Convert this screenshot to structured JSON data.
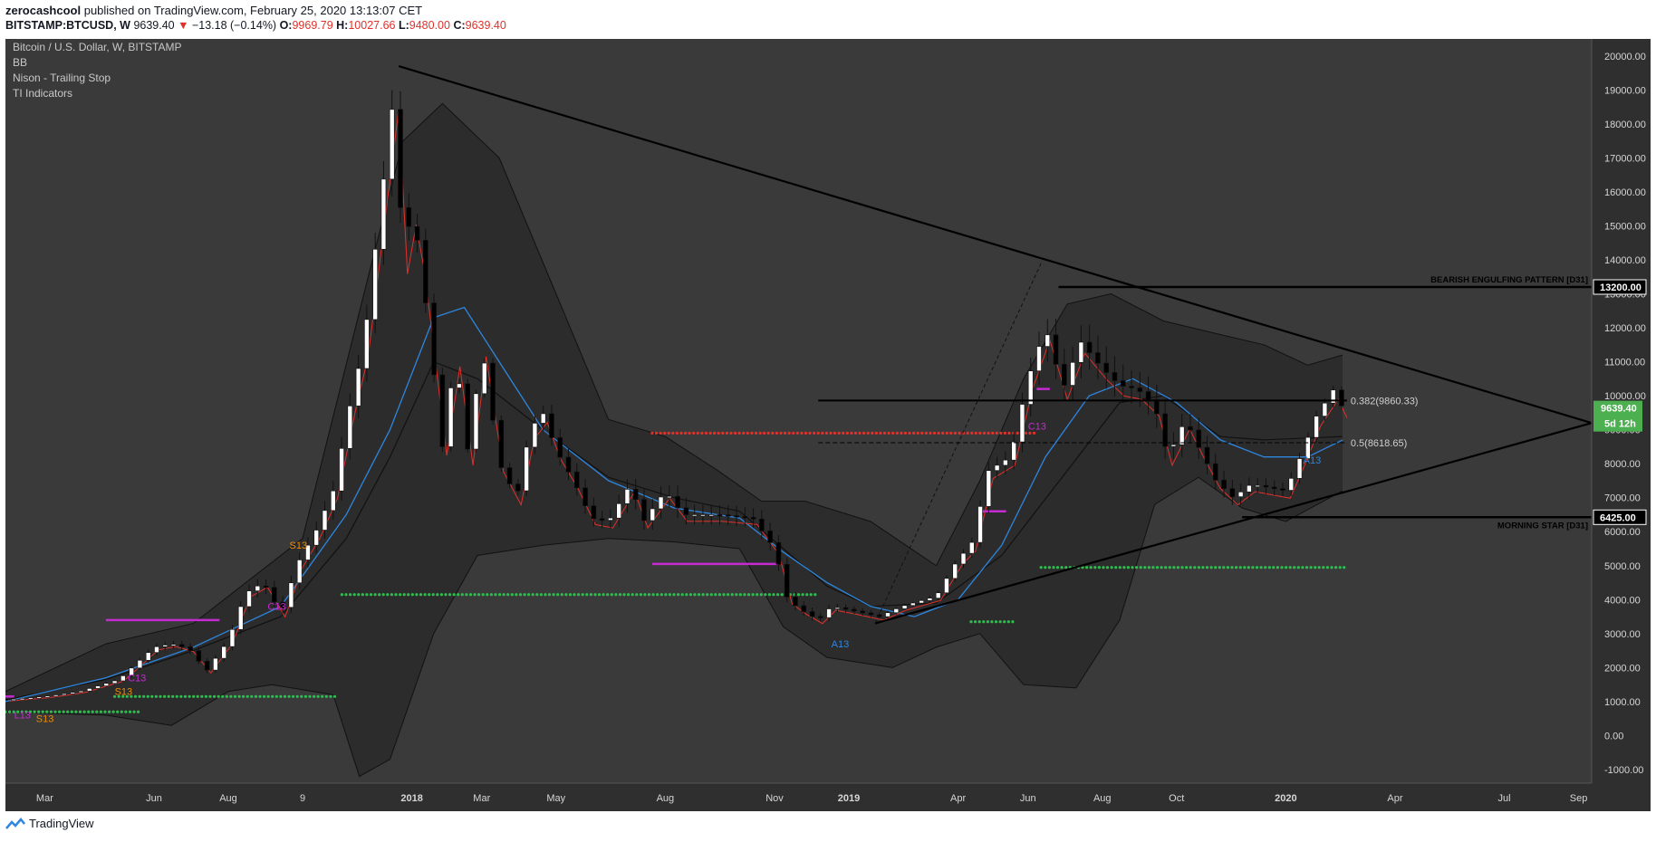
{
  "header": {
    "author": "zerocashcool",
    "published_on": "published on TradingView.com, February 25, 2020 13:13:07 CET",
    "symbol": "BITSTAMP:BTCUSD, W",
    "last": "9639.40",
    "arrow": "▼",
    "change": "−13.18 (−0.14%)",
    "o_label": "O:",
    "o": "9969.79",
    "h_label": "H:",
    "h": "10027.66",
    "l_label": "L:",
    "l": "9480.00",
    "c_label": "C:",
    "c": "9639.40"
  },
  "legend": [
    "Bitcoin / U.S. Dollar, W, BITSTAMP",
    "BB",
    "Nison - Trailing Stop",
    "TI Indicators"
  ],
  "footer": {
    "brand": "TradingView"
  },
  "colors": {
    "pane_bg": "#3a3a3a",
    "bb_fill": "#2c2c2c",
    "up": "#ffffff",
    "down": "#000000",
    "ma_blue": "#2e86de",
    "red_trail": "#e0312b",
    "dot_green": "#2ebd4e",
    "dot_red": "#e0312b",
    "magenta": "#c42bd1",
    "price_tag": "#4caf50"
  },
  "chart_data": {
    "type": "candlestick",
    "y_axis": {
      "ticks": [
        "20000.00",
        "19000.00",
        "18000.00",
        "17000.00",
        "16000.00",
        "15000.00",
        "14000.00",
        "13000.00",
        "12000.00",
        "11000.00",
        "10000.00",
        "9000.00",
        "8000.00",
        "7000.00",
        "6000.00",
        "5000.00",
        "4000.00",
        "3000.00",
        "2000.00",
        "1000.00",
        "0.00",
        "-1000.00"
      ],
      "range": [
        -1400,
        20500
      ]
    },
    "x_axis": {
      "ticks": [
        {
          "label": "Mar",
          "t": 2017.16
        },
        {
          "label": "Jun",
          "t": 2017.41
        },
        {
          "label": "Aug",
          "t": 2017.58
        },
        {
          "label": "9",
          "t": 2017.75
        },
        {
          "label": "2018",
          "t": 2018.0
        },
        {
          "label": "Mar",
          "t": 2018.16
        },
        {
          "label": "May",
          "t": 2018.33
        },
        {
          "label": "Aug",
          "t": 2018.58
        },
        {
          "label": "Nov",
          "t": 2018.83
        },
        {
          "label": "2019",
          "t": 2019.0
        },
        {
          "label": "Apr",
          "t": 2019.25
        },
        {
          "label": "Jun",
          "t": 2019.41
        },
        {
          "label": "Aug",
          "t": 2019.58
        },
        {
          "label": "Oct",
          "t": 2019.75
        },
        {
          "label": "2020",
          "t": 2020.0
        },
        {
          "label": "Apr",
          "t": 2020.25
        },
        {
          "label": "Jul",
          "t": 2020.5
        },
        {
          "label": "Sep",
          "t": 2020.67
        }
      ],
      "range": [
        2017.07,
        2020.7
      ]
    },
    "price_path": [
      [
        2017.07,
        1050
      ],
      [
        2017.16,
        1150
      ],
      [
        2017.24,
        1300
      ],
      [
        2017.33,
        1650
      ],
      [
        2017.41,
        2600
      ],
      [
        2017.45,
        2700
      ],
      [
        2017.49,
        2550
      ],
      [
        2017.53,
        1900
      ],
      [
        2017.58,
        2800
      ],
      [
        2017.62,
        4200
      ],
      [
        2017.66,
        4500
      ],
      [
        2017.7,
        3600
      ],
      [
        2017.74,
        5100
      ],
      [
        2017.78,
        6000
      ],
      [
        2017.82,
        7200
      ],
      [
        2017.86,
        9800
      ],
      [
        2017.89,
        11500
      ],
      [
        2017.93,
        15800
      ],
      [
        2017.96,
        19000
      ],
      [
        2017.98,
        14000
      ],
      [
        2018.0,
        15500
      ],
      [
        2018.02,
        14000
      ],
      [
        2018.04,
        11800
      ],
      [
        2018.07,
        8500
      ],
      [
        2018.1,
        11200
      ],
      [
        2018.13,
        8200
      ],
      [
        2018.16,
        11500
      ],
      [
        2018.2,
        8000
      ],
      [
        2018.24,
        7000
      ],
      [
        2018.27,
        9000
      ],
      [
        2018.3,
        9500
      ],
      [
        2018.33,
        8400
      ],
      [
        2018.37,
        7500
      ],
      [
        2018.41,
        6400
      ],
      [
        2018.45,
        6300
      ],
      [
        2018.5,
        7400
      ],
      [
        2018.53,
        6300
      ],
      [
        2018.58,
        7200
      ],
      [
        2018.62,
        6500
      ],
      [
        2018.7,
        6500
      ],
      [
        2018.78,
        6400
      ],
      [
        2018.83,
        5500
      ],
      [
        2018.86,
        4000
      ],
      [
        2018.89,
        3700
      ],
      [
        2018.93,
        3400
      ],
      [
        2018.96,
        3800
      ],
      [
        2019.0,
        3700
      ],
      [
        2019.07,
        3500
      ],
      [
        2019.12,
        3800
      ],
      [
        2019.2,
        4100
      ],
      [
        2019.25,
        5200
      ],
      [
        2019.28,
        5600
      ],
      [
        2019.32,
        7800
      ],
      [
        2019.37,
        8200
      ],
      [
        2019.41,
        10500
      ],
      [
        2019.45,
        12000
      ],
      [
        2019.49,
        10200
      ],
      [
        2019.53,
        11600
      ],
      [
        2019.58,
        10800
      ],
      [
        2019.62,
        10300
      ],
      [
        2019.66,
        10200
      ],
      [
        2019.7,
        9700
      ],
      [
        2019.73,
        8200
      ],
      [
        2019.77,
        9300
      ],
      [
        2019.8,
        8500
      ],
      [
        2019.84,
        7500
      ],
      [
        2019.88,
        7000
      ],
      [
        2019.92,
        7400
      ],
      [
        2019.96,
        7300
      ],
      [
        2020.0,
        7200
      ],
      [
        2020.03,
        8100
      ],
      [
        2020.07,
        9400
      ],
      [
        2020.11,
        10200
      ],
      [
        2020.13,
        9639
      ]
    ],
    "bb_upper": [
      [
        2017.07,
        1300
      ],
      [
        2017.3,
        2700
      ],
      [
        2017.5,
        3300
      ],
      [
        2017.75,
        5800
      ],
      [
        2017.9,
        13500
      ],
      [
        2017.98,
        17500
      ],
      [
        2018.07,
        18600
      ],
      [
        2018.2,
        17000
      ],
      [
        2018.33,
        13000
      ],
      [
        2018.45,
        9300
      ],
      [
        2018.58,
        8800
      ],
      [
        2018.7,
        7800
      ],
      [
        2018.8,
        6900
      ],
      [
        2018.9,
        6900
      ],
      [
        2019.05,
        6300
      ],
      [
        2019.2,
        5000
      ],
      [
        2019.3,
        7500
      ],
      [
        2019.4,
        10500
      ],
      [
        2019.5,
        12700
      ],
      [
        2019.6,
        13000
      ],
      [
        2019.72,
        12200
      ],
      [
        2019.85,
        11800
      ],
      [
        2019.95,
        11500
      ],
      [
        2020.05,
        10900
      ],
      [
        2020.13,
        11200
      ]
    ],
    "bb_lower": [
      [
        2017.07,
        700
      ],
      [
        2017.3,
        600
      ],
      [
        2017.45,
        300
      ],
      [
        2017.58,
        1300
      ],
      [
        2017.68,
        1500
      ],
      [
        2017.82,
        1200
      ],
      [
        2017.88,
        -1200
      ],
      [
        2017.95,
        -700
      ],
      [
        2018.05,
        3000
      ],
      [
        2018.15,
        5300
      ],
      [
        2018.3,
        5600
      ],
      [
        2018.45,
        5800
      ],
      [
        2018.6,
        5700
      ],
      [
        2018.75,
        5500
      ],
      [
        2018.85,
        3200
      ],
      [
        2018.95,
        2300
      ],
      [
        2019.1,
        2000
      ],
      [
        2019.2,
        2600
      ],
      [
        2019.3,
        3000
      ],
      [
        2019.4,
        1500
      ],
      [
        2019.52,
        1400
      ],
      [
        2019.62,
        3400
      ],
      [
        2019.7,
        6800
      ],
      [
        2019.8,
        7600
      ],
      [
        2019.9,
        6700
      ],
      [
        2020.0,
        6300
      ],
      [
        2020.13,
        7200
      ]
    ],
    "ma_blue": [
      [
        2017.07,
        1000
      ],
      [
        2017.3,
        1700
      ],
      [
        2017.5,
        2600
      ],
      [
        2017.7,
        3800
      ],
      [
        2017.85,
        6500
      ],
      [
        2017.95,
        9000
      ],
      [
        2018.05,
        12300
      ],
      [
        2018.12,
        12600
      ],
      [
        2018.2,
        11000
      ],
      [
        2018.3,
        9000
      ],
      [
        2018.45,
        7500
      ],
      [
        2018.6,
        6700
      ],
      [
        2018.75,
        6400
      ],
      [
        2018.85,
        5400
      ],
      [
        2018.95,
        4500
      ],
      [
        2019.05,
        3800
      ],
      [
        2019.15,
        3500
      ],
      [
        2019.25,
        4000
      ],
      [
        2019.35,
        5600
      ],
      [
        2019.45,
        8200
      ],
      [
        2019.55,
        10000
      ],
      [
        2019.65,
        10500
      ],
      [
        2019.75,
        9800
      ],
      [
        2019.85,
        8700
      ],
      [
        2019.95,
        8200
      ],
      [
        2020.05,
        8200
      ],
      [
        2020.13,
        8700
      ]
    ],
    "bb_mid": [
      [
        2017.07,
        1050
      ],
      [
        2017.3,
        1650
      ],
      [
        2017.5,
        2500
      ],
      [
        2017.7,
        3500
      ],
      [
        2017.85,
        5800
      ],
      [
        2017.95,
        8200
      ],
      [
        2018.05,
        11000
      ],
      [
        2018.15,
        10500
      ],
      [
        2018.3,
        9000
      ],
      [
        2018.45,
        7600
      ],
      [
        2018.6,
        7000
      ],
      [
        2018.75,
        6600
      ],
      [
        2018.85,
        5500
      ],
      [
        2018.95,
        4400
      ],
      [
        2019.05,
        3800
      ],
      [
        2019.2,
        3900
      ],
      [
        2019.35,
        5300
      ],
      [
        2019.5,
        7800
      ],
      [
        2019.62,
        9800
      ],
      [
        2019.72,
        10000
      ],
      [
        2019.85,
        8800
      ],
      [
        2019.95,
        8700
      ],
      [
        2020.13,
        8800
      ]
    ],
    "trendlines": [
      {
        "from": [
          2017.97,
          19700
        ],
        "to": [
          2020.7,
          9200
        ]
      },
      {
        "from": [
          2019.06,
          3300
        ],
        "to": [
          2020.7,
          9200
        ]
      }
    ],
    "levels": [
      {
        "label": "BEARISH ENGULFING PATTERN [D31]",
        "value": 13200.0,
        "tag": "13200.00",
        "from": 2019.48
      },
      {
        "label": "MORNING STAR [D31]",
        "value": 6425.0,
        "tag": "6425.00",
        "from": 2019.9
      }
    ],
    "fib": [
      {
        "label": "0.382(9860.33)",
        "value": 9860.33,
        "from": 2018.93,
        "to": 2020.14
      },
      {
        "label": "0.5(8618.65)",
        "value": 8618.65,
        "from": 2018.93,
        "to": 2020.14
      }
    ],
    "price_tag": {
      "value": 9639.4,
      "label": "9639.40",
      "countdown": "5d 12h"
    },
    "annotations": [
      {
        "text": "L13",
        "t": 2017.09,
        "v": 500,
        "color": "#c42bd1"
      },
      {
        "text": "S13",
        "t": 2017.14,
        "v": 400,
        "color": "#f08c00"
      },
      {
        "text": "S13",
        "t": 2017.32,
        "v": 1200,
        "color": "#f08c00"
      },
      {
        "text": "C13",
        "t": 2017.35,
        "v": 1600,
        "color": "#c42bd1"
      },
      {
        "text": "C13",
        "t": 2017.67,
        "v": 3700,
        "color": "#c42bd1"
      },
      {
        "text": "S13",
        "t": 2017.72,
        "v": 5500,
        "color": "#f08c00"
      },
      {
        "text": "A13",
        "t": 2018.96,
        "v": 2600,
        "color": "#2e86de"
      },
      {
        "text": "C13",
        "t": 2019.41,
        "v": 9000,
        "color": "#c42bd1"
      },
      {
        "text": "A13",
        "t": 2020.04,
        "v": 8000,
        "color": "#2e86de"
      }
    ]
  }
}
